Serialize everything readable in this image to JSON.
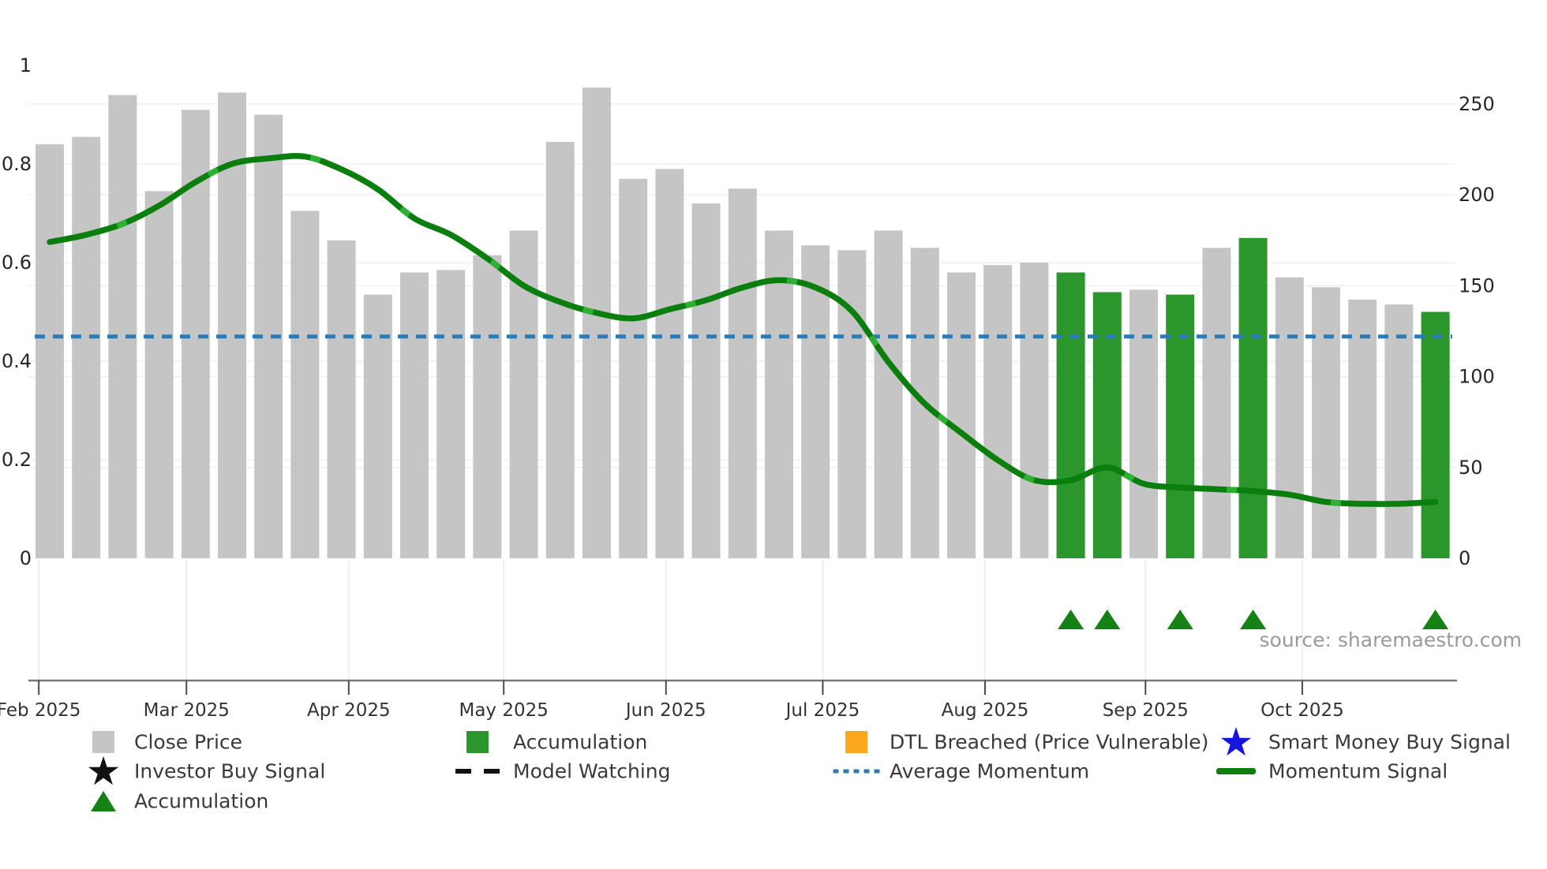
{
  "source": "source: sharemaestro.com",
  "colors": {
    "close_bar": "#c5c5c5",
    "accum_bar": "#2a962c",
    "accumulation_bar": "#2a962c",
    "momentum_line": "#0a7f0d",
    "momentum_dash": "#2eb033",
    "average_momentum": "#2e7bb4",
    "triangle": "#148214",
    "orange": "#fba81c",
    "blue_star": "#1515e0",
    "black": "#111111",
    "grid": "#ecedf2",
    "grid_vertical": "#e9eaef",
    "axis_text": "#262626",
    "month_text": "#333333",
    "spine": "#787878"
  },
  "chart_data": {
    "type": "bar+line",
    "title": "",
    "n_weeks": 39,
    "left_axis": {
      "label": "",
      "ticks": [
        0,
        0.2,
        0.4,
        0.6,
        0.8,
        1
      ],
      "range": [
        0,
        1
      ]
    },
    "right_axis": {
      "label": "",
      "ticks": [
        0,
        50,
        100,
        150,
        200,
        250
      ],
      "range": [
        0,
        259
      ]
    },
    "x_axis": {
      "months": [
        {
          "label": "Feb 2025",
          "bar_pos": -0.3
        },
        {
          "label": "Mar 2025",
          "bar_pos": 3.75
        },
        {
          "label": "Apr 2025",
          "bar_pos": 8.2
        },
        {
          "label": "May 2025",
          "bar_pos": 12.45
        },
        {
          "label": "Jun 2025",
          "bar_pos": 16.9
        },
        {
          "label": "Jul 2025",
          "bar_pos": 21.2
        },
        {
          "label": "Aug 2025",
          "bar_pos": 25.65
        },
        {
          "label": "Sep 2025",
          "bar_pos": 30.05
        },
        {
          "label": "Oct 2025",
          "bar_pos": 34.35
        }
      ]
    },
    "series": [
      {
        "name": "Close Price",
        "type": "bar",
        "axis": "left",
        "values": [
          0.84,
          0.855,
          0.94,
          0.745,
          0.91,
          0.945,
          0.9,
          0.705,
          0.645,
          0.535,
          0.58,
          0.585,
          0.615,
          0.665,
          0.845,
          0.955,
          0.77,
          0.79,
          0.72,
          0.75,
          0.665,
          0.635,
          0.625,
          0.665,
          0.63,
          0.58,
          0.595,
          0.6,
          0.58,
          0.54,
          0.545,
          0.535,
          0.63,
          0.65,
          0.57,
          0.55,
          0.525,
          0.515,
          0.5
        ]
      },
      {
        "name": "Accumulation",
        "type": "bar-highlight",
        "axis": "left",
        "week_indices_zero_based": [
          28,
          29,
          31,
          33,
          38
        ]
      },
      {
        "name": "Momentum Signal",
        "type": "line",
        "axis": "right",
        "values": [
          174,
          178,
          184,
          194,
          207,
          217,
          220,
          221,
          214,
          203,
          187,
          178,
          165,
          150,
          141,
          135,
          132,
          137,
          142,
          149,
          153,
          149,
          136,
          108,
          85,
          69,
          54,
          43,
          43,
          50,
          41,
          39,
          38,
          37,
          35,
          31,
          30,
          30,
          31
        ]
      },
      {
        "name": "Average Momentum",
        "type": "hline",
        "axis": "right",
        "value": 122
      }
    ],
    "markers": {
      "accumulation_triangles": {
        "week_indices_zero_based": [
          28,
          29,
          31,
          33,
          38
        ]
      }
    }
  },
  "legend": {
    "items": [
      {
        "label": "Close Price",
        "swatch": "square",
        "color_key": "close_bar",
        "row": 0,
        "col": 0,
        "name": "close-price"
      },
      {
        "label": "Accumulation",
        "swatch": "square",
        "color_key": "accumulation_bar",
        "row": 0,
        "col": 1,
        "name": "accumulation-bars"
      },
      {
        "label": "DTL Breached (Price Vulnerable)",
        "swatch": "square",
        "color_key": "orange",
        "row": 0,
        "col": 2,
        "name": "dtl-breached"
      },
      {
        "label": "Smart Money Buy Signal",
        "swatch": "star",
        "color_key": "blue_star",
        "row": 0,
        "col": 3,
        "name": "smart-money-buy-signal"
      },
      {
        "label": "Investor Buy Signal",
        "swatch": "star",
        "color_key": "black",
        "row": 1,
        "col": 0,
        "name": "investor-buy-signal"
      },
      {
        "label": "Model Watching",
        "swatch": "dashes",
        "color_key": "black",
        "row": 1,
        "col": 1,
        "name": "model-watching"
      },
      {
        "label": "Average Momentum",
        "swatch": "dots",
        "color_key": "average_momentum",
        "row": 1,
        "col": 2,
        "name": "average-momentum"
      },
      {
        "label": "Momentum Signal",
        "swatch": "line",
        "color_key": "momentum_line",
        "row": 1,
        "col": 3,
        "name": "momentum-signal"
      },
      {
        "label": "Accumulation",
        "swatch": "triangle",
        "color_key": "triangle",
        "row": 2,
        "col": 0,
        "name": "accumulation-markers"
      }
    ]
  }
}
